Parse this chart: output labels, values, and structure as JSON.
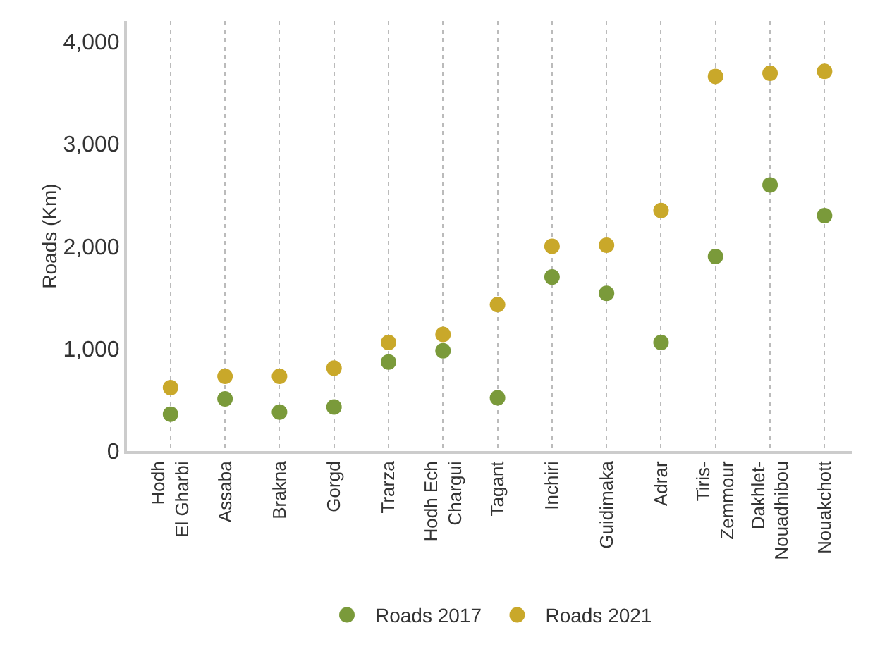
{
  "chart_data": {
    "type": "scatter",
    "ylabel": "Roads (Km)",
    "categories": [
      "Hodh\nEl Gharbi",
      "Assaba",
      "Brakna",
      "Gorgd",
      "Trarza",
      "Hodh Ech\nChargui",
      "Tagant",
      "Inchiri",
      "Guidimaka",
      "Adrar",
      "Tiris-\nZemmour",
      "Dakhlet-\nNouadhibou",
      "Nouakchott"
    ],
    "series": [
      {
        "name": "Roads 2017",
        "color": "#7a9a3a",
        "values": [
          360,
          510,
          380,
          430,
          870,
          980,
          520,
          1700,
          1540,
          1060,
          1900,
          2600,
          2300
        ]
      },
      {
        "name": "Roads 2021",
        "color": "#c9a82a",
        "values": [
          620,
          730,
          730,
          810,
          1060,
          1140,
          1430,
          2000,
          2010,
          2350,
          3660,
          3690,
          3710
        ]
      }
    ],
    "ylim": [
      0,
      4200
    ],
    "yticks": [
      0,
      {
        "value": 1000,
        "label": "1,000"
      },
      {
        "value": 2000,
        "label": "2,000"
      },
      {
        "value": 3000,
        "label": "3,000"
      },
      {
        "value": 4000,
        "label": "4,000"
      }
    ],
    "grid": "x",
    "legend": "bottom",
    "marker": "circle"
  }
}
